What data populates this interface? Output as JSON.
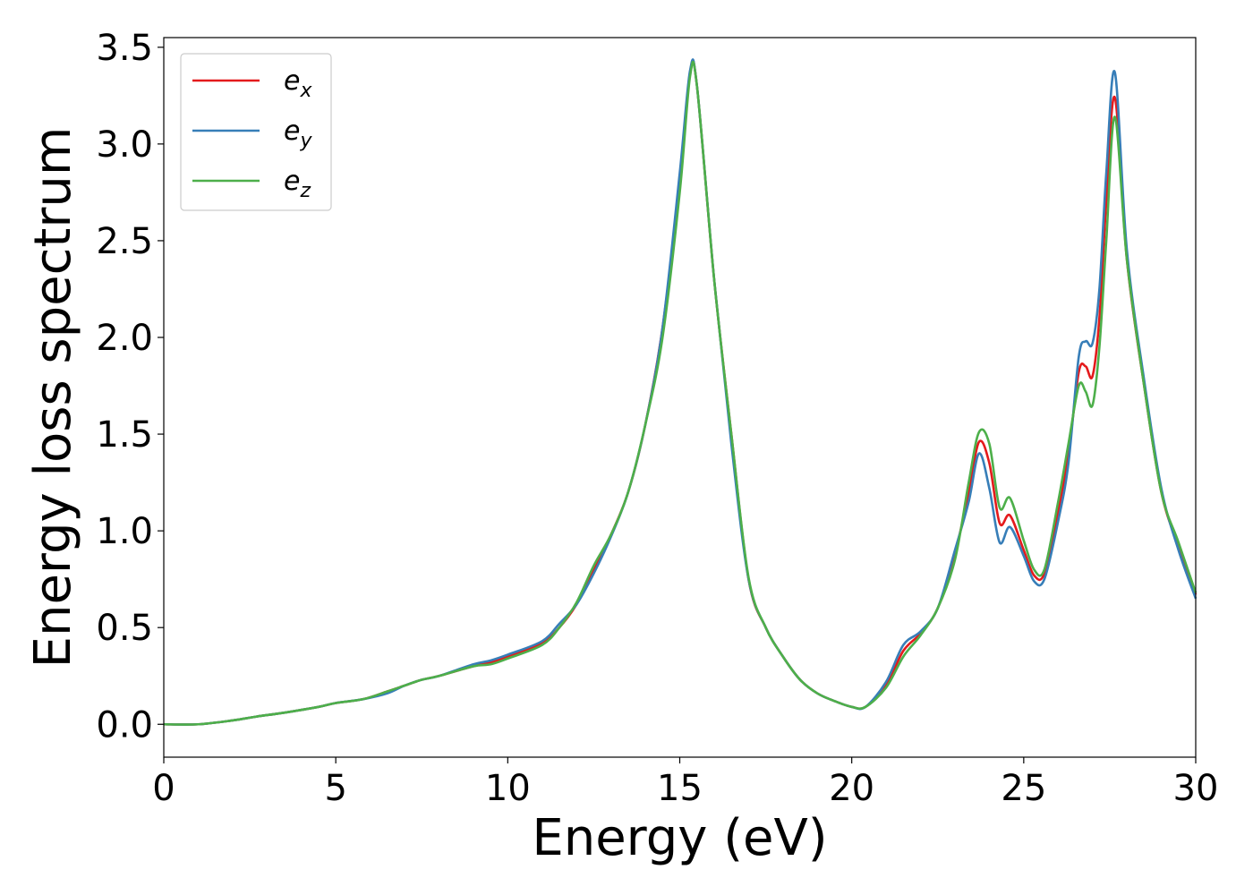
{
  "chart_data": {
    "type": "line",
    "title": "",
    "xlabel": "Energy (eV)",
    "ylabel": "Energy loss spectrum",
    "xlim": [
      0,
      30
    ],
    "ylim": [
      -0.17,
      3.55
    ],
    "xticks": [
      0,
      5,
      10,
      15,
      20,
      25,
      30
    ],
    "xtick_labels": [
      "0",
      "5",
      "10",
      "15",
      "20",
      "25",
      "30"
    ],
    "yticks": [
      0.0,
      0.5,
      1.0,
      1.5,
      2.0,
      2.5,
      3.0,
      3.5
    ],
    "ytick_labels": [
      "0.0",
      "0.5",
      "1.0",
      "1.5",
      "2.0",
      "2.5",
      "3.0",
      "3.5"
    ],
    "grid": false,
    "legend_position": "top-left",
    "series": [
      {
        "name": "e",
        "subscript": "x",
        "color": "#e41a1c",
        "x": [
          0,
          1,
          2,
          2.7,
          3.5,
          4.5,
          5,
          5.8,
          6.5,
          7,
          7.5,
          8,
          9,
          9.5,
          10,
          11,
          11.5,
          12,
          12.5,
          13,
          13.5,
          14,
          14.5,
          15,
          15.3,
          15.5,
          16,
          16.5,
          17,
          17.5,
          18,
          18.5,
          19,
          19.5,
          20,
          20.4,
          21,
          21.5,
          22,
          22.5,
          23,
          23.4,
          23.7,
          24,
          24.3,
          24.6,
          25,
          25.3,
          25.6,
          26,
          26.3,
          26.6,
          26.8,
          27,
          27.2,
          27.4,
          27.65,
          28,
          28.5,
          29,
          29.5,
          30
        ],
        "y": [
          0.0,
          0.0,
          0.02,
          0.04,
          0.06,
          0.09,
          0.11,
          0.13,
          0.17,
          0.2,
          0.23,
          0.25,
          0.3,
          0.32,
          0.35,
          0.42,
          0.5,
          0.62,
          0.8,
          0.98,
          1.2,
          1.55,
          2.05,
          2.8,
          3.37,
          3.3,
          2.3,
          1.5,
          0.75,
          0.5,
          0.35,
          0.23,
          0.16,
          0.12,
          0.09,
          0.09,
          0.2,
          0.38,
          0.47,
          0.6,
          0.88,
          1.2,
          1.46,
          1.35,
          1.04,
          1.08,
          0.9,
          0.77,
          0.78,
          1.1,
          1.4,
          1.82,
          1.85,
          1.8,
          2.1,
          2.7,
          3.24,
          2.4,
          1.75,
          1.2,
          0.92,
          0.67
        ]
      },
      {
        "name": "e",
        "subscript": "y",
        "color": "#377eb8",
        "x": [
          0,
          1,
          2,
          2.7,
          3.5,
          4.5,
          5,
          5.8,
          6.5,
          7,
          7.5,
          8,
          9,
          9.5,
          10,
          11,
          11.5,
          12,
          12.5,
          13,
          13.5,
          14,
          14.5,
          15,
          15.3,
          15.5,
          16,
          16.5,
          17,
          17.5,
          18,
          18.5,
          19,
          19.5,
          20,
          20.4,
          21,
          21.5,
          22,
          22.5,
          23,
          23.4,
          23.7,
          24,
          24.3,
          24.6,
          25,
          25.3,
          25.6,
          26,
          26.3,
          26.6,
          26.8,
          27,
          27.2,
          27.4,
          27.65,
          28,
          28.5,
          29,
          29.5,
          30
        ],
        "y": [
          0.0,
          0.0,
          0.02,
          0.04,
          0.06,
          0.09,
          0.11,
          0.13,
          0.16,
          0.2,
          0.23,
          0.25,
          0.31,
          0.33,
          0.36,
          0.43,
          0.52,
          0.62,
          0.78,
          0.97,
          1.2,
          1.55,
          2.05,
          2.85,
          3.38,
          3.3,
          2.3,
          1.45,
          0.75,
          0.5,
          0.35,
          0.23,
          0.16,
          0.12,
          0.09,
          0.09,
          0.22,
          0.41,
          0.48,
          0.6,
          0.9,
          1.15,
          1.4,
          1.22,
          0.94,
          1.02,
          0.87,
          0.74,
          0.75,
          1.05,
          1.35,
          1.9,
          1.98,
          1.97,
          2.25,
          2.85,
          3.37,
          2.45,
          1.78,
          1.22,
          0.9,
          0.65
        ]
      },
      {
        "name": "e",
        "subscript": "z",
        "color": "#4daf4a",
        "x": [
          0,
          1,
          2,
          2.7,
          3.5,
          4.5,
          5,
          5.8,
          6.5,
          7,
          7.5,
          8,
          9,
          9.5,
          10,
          11,
          11.5,
          12,
          12.5,
          13,
          13.5,
          14,
          14.5,
          15,
          15.3,
          15.5,
          16,
          16.5,
          17,
          17.5,
          18,
          18.5,
          19,
          19.5,
          20,
          20.4,
          21,
          21.5,
          22,
          22.5,
          23,
          23.4,
          23.7,
          24,
          24.3,
          24.6,
          25,
          25.3,
          25.6,
          26,
          26.3,
          26.6,
          26.8,
          27,
          27.2,
          27.4,
          27.65,
          28,
          28.5,
          29,
          29.5,
          30
        ],
        "y": [
          0.0,
          0.0,
          0.02,
          0.04,
          0.06,
          0.09,
          0.11,
          0.13,
          0.17,
          0.2,
          0.23,
          0.25,
          0.3,
          0.31,
          0.34,
          0.41,
          0.5,
          0.63,
          0.82,
          0.98,
          1.2,
          1.55,
          2.0,
          2.75,
          3.35,
          3.3,
          2.3,
          1.5,
          0.76,
          0.5,
          0.35,
          0.23,
          0.16,
          0.12,
          0.09,
          0.09,
          0.19,
          0.35,
          0.46,
          0.6,
          0.85,
          1.25,
          1.51,
          1.45,
          1.12,
          1.17,
          0.95,
          0.8,
          0.8,
          1.15,
          1.45,
          1.75,
          1.72,
          1.65,
          1.95,
          2.5,
          3.14,
          2.4,
          1.75,
          1.2,
          0.94,
          0.68
        ]
      }
    ]
  }
}
